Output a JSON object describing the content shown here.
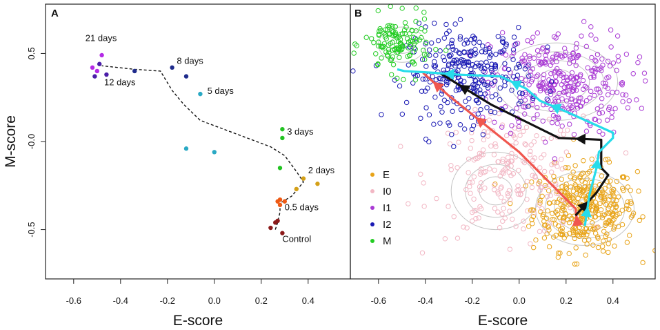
{
  "chart_data": [
    {
      "panel": "A",
      "type": "scatter",
      "xlabel": "E-score",
      "ylabel": "M-score",
      "xlim": [
        -0.72,
        0.58
      ],
      "ylim": [
        -0.78,
        0.78
      ],
      "xticks": [
        "-0.6",
        "-0.4",
        "-0.2",
        "0.0",
        "0.2",
        "0.4"
      ],
      "xtick_values": [
        -0.6,
        -0.4,
        -0.2,
        0.0,
        0.2,
        0.4
      ],
      "yticks": [
        "-0.5",
        "-0.0",
        "0.5"
      ],
      "ytick_values": [
        -0.5,
        0.0,
        0.5
      ],
      "points": [
        {
          "group": "Control",
          "color": "#8b1a1a",
          "x": 0.24,
          "y": -0.49
        },
        {
          "group": "Control",
          "color": "#8b1a1a",
          "x": 0.26,
          "y": -0.46
        },
        {
          "group": "Control",
          "color": "#8b1a1a",
          "x": 0.27,
          "y": -0.45
        },
        {
          "group": "Control",
          "color": "#8b1a1a",
          "x": 0.29,
          "y": -0.52
        },
        {
          "group": "0.5 days",
          "color": "#ee5a14",
          "x": 0.27,
          "y": -0.34
        },
        {
          "group": "0.5 days",
          "color": "#ee5a14",
          "x": 0.28,
          "y": -0.33
        },
        {
          "group": "0.5 days",
          "color": "#ee5a14",
          "x": 0.3,
          "y": -0.34
        },
        {
          "group": "0.5 days",
          "color": "#ee5a14",
          "x": 0.28,
          "y": -0.36
        },
        {
          "group": "2 days",
          "color": "#d4a017",
          "x": 0.35,
          "y": -0.27
        },
        {
          "group": "2 days",
          "color": "#d4a017",
          "x": 0.38,
          "y": -0.21
        },
        {
          "group": "2 days",
          "color": "#d4a017",
          "x": 0.44,
          "y": -0.24
        },
        {
          "group": "3 days",
          "color": "#22c322",
          "x": 0.29,
          "y": 0.07
        },
        {
          "group": "3 days",
          "color": "#22c322",
          "x": 0.29,
          "y": 0.02
        },
        {
          "group": "3 days",
          "color": "#22c322",
          "x": 0.28,
          "y": -0.15
        },
        {
          "group": "5 days",
          "color": "#2aa9c4",
          "x": -0.06,
          "y": 0.27
        },
        {
          "group": "5 days",
          "color": "#2aa9c4",
          "x": -0.12,
          "y": -0.04
        },
        {
          "group": "5 days",
          "color": "#2aa9c4",
          "x": 0.0,
          "y": -0.06
        },
        {
          "group": "8 days",
          "color": "#1f2c8c",
          "x": -0.18,
          "y": 0.42
        },
        {
          "group": "8 days",
          "color": "#1f2c8c",
          "x": -0.12,
          "y": 0.37
        },
        {
          "group": "8 days",
          "color": "#1f2c8c",
          "x": -0.34,
          "y": 0.4
        },
        {
          "group": "12 days",
          "color": "#4b1ea8",
          "x": -0.46,
          "y": 0.38
        },
        {
          "group": "12 days",
          "color": "#4b1ea8",
          "x": -0.51,
          "y": 0.37
        },
        {
          "group": "12 days",
          "color": "#4b1ea8",
          "x": -0.49,
          "y": 0.44
        },
        {
          "group": "21 days",
          "color": "#b42ae6",
          "x": -0.48,
          "y": 0.49
        },
        {
          "group": "21 days",
          "color": "#b42ae6",
          "x": -0.52,
          "y": 0.42
        },
        {
          "group": "21 days",
          "color": "#b42ae6",
          "x": -0.5,
          "y": 0.4
        }
      ],
      "trajectory": [
        [
          0.26,
          -0.5
        ],
        [
          0.27,
          -0.46
        ],
        [
          0.28,
          -0.4
        ],
        [
          0.28,
          -0.35
        ],
        [
          0.33,
          -0.31
        ],
        [
          0.38,
          -0.23
        ],
        [
          0.35,
          -0.17
        ],
        [
          0.3,
          -0.08
        ],
        [
          0.24,
          -0.03
        ],
        [
          -0.06,
          0.12
        ],
        [
          -0.13,
          0.21
        ],
        [
          -0.18,
          0.29
        ],
        [
          -0.23,
          0.4
        ],
        [
          -0.34,
          0.41
        ],
        [
          -0.48,
          0.43
        ]
      ],
      "annotations": [
        {
          "text": "21 days",
          "x": -0.55,
          "y": 0.57
        },
        {
          "text": "12 days",
          "x": -0.47,
          "y": 0.32
        },
        {
          "text": "8 days",
          "x": -0.16,
          "y": 0.44
        },
        {
          "text": "5 days",
          "x": -0.03,
          "y": 0.27
        },
        {
          "text": "3 days",
          "x": 0.31,
          "y": 0.04
        },
        {
          "text": "2 days",
          "x": 0.4,
          "y": -0.18
        },
        {
          "text": "0.5 days",
          "x": 0.3,
          "y": -0.39
        },
        {
          "text": "Control",
          "x": 0.29,
          "y": -0.57
        }
      ]
    },
    {
      "panel": "B",
      "type": "scatter",
      "xlabel": "E-score",
      "xlim": [
        -0.72,
        0.58
      ],
      "ylim": [
        -0.78,
        0.78
      ],
      "xticks": [
        "-0.6",
        "-0.4",
        "-0.2",
        "0.0",
        "0.2",
        "0.4"
      ],
      "xtick_values": [
        -0.6,
        -0.4,
        -0.2,
        0.0,
        0.2,
        0.4
      ],
      "legend": [
        {
          "label": "E",
          "color": "#e8a317"
        },
        {
          "label": "I0",
          "color": "#f2b7c4"
        },
        {
          "label": "I1",
          "color": "#a93ad4"
        },
        {
          "label": "I2",
          "color": "#1a1ab4"
        },
        {
          "label": "M",
          "color": "#22cc22"
        }
      ],
      "clusters": [
        {
          "label": "E",
          "color": "#e8a317",
          "count": 380,
          "cx": 0.28,
          "cy": -0.38,
          "sx": 0.11,
          "sy": 0.12
        },
        {
          "label": "I0",
          "color": "#f2b7c4",
          "count": 210,
          "cx": -0.05,
          "cy": -0.2,
          "sx": 0.16,
          "sy": 0.17
        },
        {
          "label": "I1",
          "color": "#a93ad4",
          "count": 330,
          "cx": 0.18,
          "cy": 0.33,
          "sx": 0.15,
          "sy": 0.15
        },
        {
          "label": "I2",
          "color": "#1a1ab4",
          "count": 290,
          "cx": -0.22,
          "cy": 0.38,
          "sx": 0.13,
          "sy": 0.13
        },
        {
          "label": "M",
          "color": "#22cc22",
          "count": 130,
          "cx": -0.52,
          "cy": 0.55,
          "sx": 0.07,
          "sy": 0.08
        }
      ],
      "contours": [
        {
          "cx": 0.28,
          "cy": -0.38,
          "rx": [
            0.05,
            0.09,
            0.13,
            0.17,
            0.21
          ],
          "ry": [
            0.05,
            0.09,
            0.13,
            0.17,
            0.21
          ]
        },
        {
          "cx": 0.16,
          "cy": 0.34,
          "rx": [
            0.08,
            0.14,
            0.2,
            0.26
          ],
          "ry": [
            0.07,
            0.12,
            0.17,
            0.22
          ]
        },
        {
          "cx": -0.1,
          "cy": -0.28,
          "rx": [
            0.07,
            0.13,
            0.19
          ],
          "ry": [
            0.08,
            0.15,
            0.22
          ]
        },
        {
          "cx": -0.5,
          "cy": 0.55,
          "rx": [
            0.05,
            0.1
          ],
          "ry": [
            0.05,
            0.1
          ]
        }
      ],
      "trajectories": [
        {
          "name": "red",
          "color": "#f0574f",
          "points": [
            [
              0.25,
              -0.48
            ],
            [
              0.24,
              -0.38
            ],
            [
              0.0,
              -0.06
            ],
            [
              -0.3,
              0.26
            ],
            [
              -0.41,
              0.39
            ]
          ]
        },
        {
          "name": "black",
          "color": "#111111",
          "points": [
            [
              0.24,
              -0.42
            ],
            [
              0.33,
              -0.29
            ],
            [
              0.38,
              -0.19
            ],
            [
              0.35,
              -0.15
            ],
            [
              0.35,
              0.01
            ],
            [
              0.17,
              0.02
            ],
            [
              -0.12,
              0.21
            ],
            [
              -0.34,
              0.39
            ]
          ]
        },
        {
          "name": "cyan",
          "color": "#27dcea",
          "points": [
            [
              0.28,
              -0.48
            ],
            [
              0.3,
              -0.3
            ],
            [
              0.33,
              -0.15
            ],
            [
              0.34,
              -0.06
            ],
            [
              0.4,
              0.02
            ],
            [
              0.4,
              0.05
            ],
            [
              0.2,
              0.17
            ],
            [
              0.09,
              0.23
            ],
            [
              0.03,
              0.3
            ],
            [
              -0.08,
              0.37
            ],
            [
              -0.26,
              0.38
            ],
            [
              -0.36,
              0.39
            ],
            [
              -0.49,
              0.4
            ],
            [
              -0.52,
              0.41
            ]
          ]
        }
      ]
    }
  ]
}
